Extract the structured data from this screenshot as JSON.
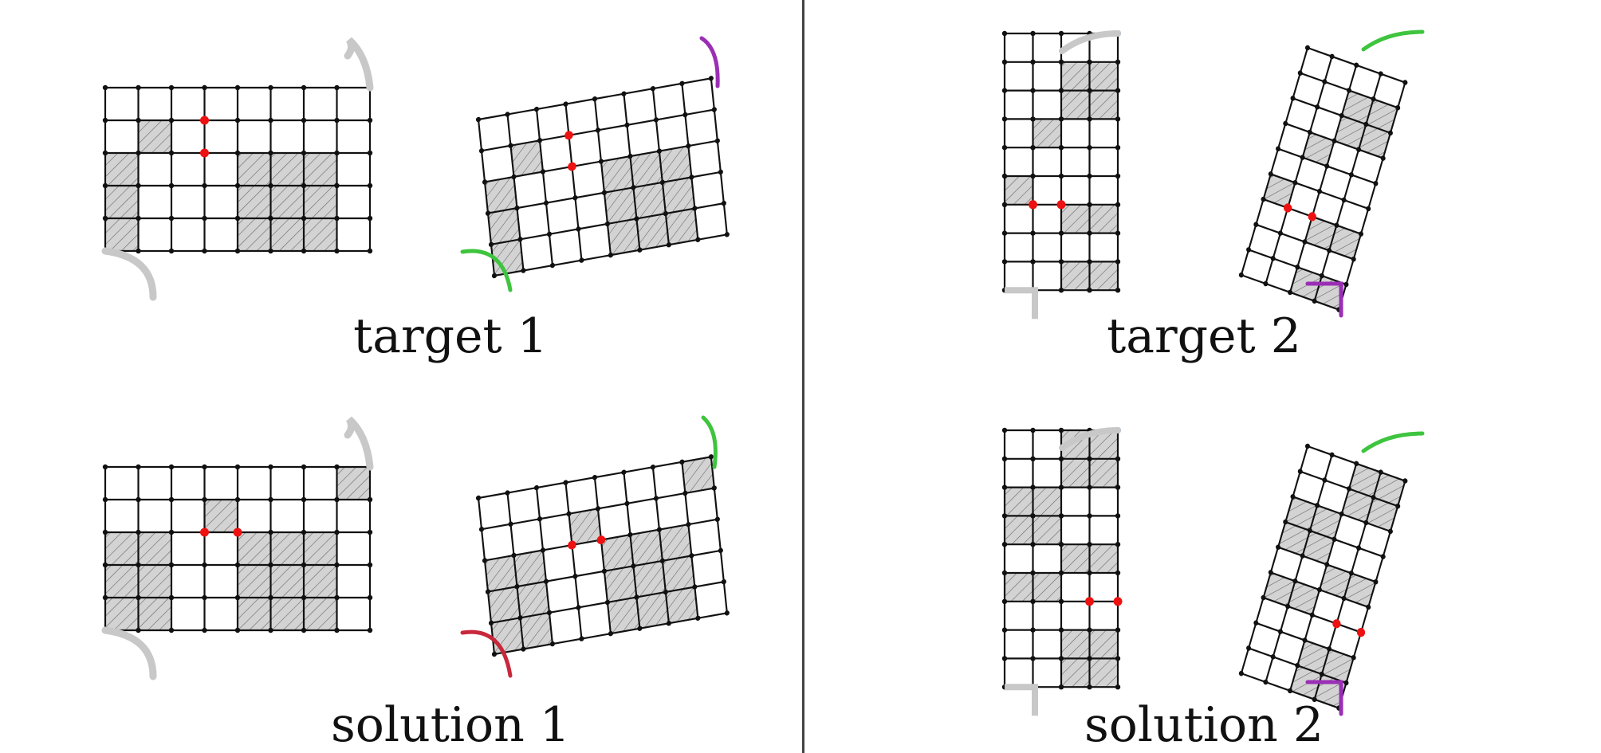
{
  "captions": {
    "target1": "target 1",
    "solution1": "solution 1",
    "target2": "target 2",
    "solution2": "solution 2"
  },
  "colors": {
    "line": "#111111",
    "shade": "#d3d3d3",
    "hatch": "#555555",
    "marker": "#ee1111",
    "corner_dot": "#3a8ee6",
    "arc_gray": "#c8c8c8",
    "arc_purple": "#9a2fb5",
    "arc_green": "#3ec43e",
    "arc_red": "#c8283c"
  },
  "panels": {
    "target1": {
      "cols": 8,
      "rows": 5,
      "shaded": [
        [
          1,
          1
        ],
        [
          0,
          2
        ],
        [
          4,
          2
        ],
        [
          5,
          2
        ],
        [
          6,
          2
        ],
        [
          0,
          3
        ],
        [
          4,
          3
        ],
        [
          5,
          3
        ],
        [
          6,
          3
        ],
        [
          0,
          4
        ],
        [
          4,
          4
        ],
        [
          5,
          4
        ],
        [
          6,
          4
        ]
      ],
      "markers": [
        [
          3,
          1
        ],
        [
          3,
          2
        ]
      ],
      "folded_arc": "arc_purple",
      "bottom_arc": "arc_green"
    },
    "solution1": {
      "cols": 8,
      "rows": 5,
      "shaded": [
        [
          7,
          0
        ],
        [
          3,
          1
        ],
        [
          0,
          2
        ],
        [
          1,
          2
        ],
        [
          4,
          2
        ],
        [
          5,
          2
        ],
        [
          6,
          2
        ],
        [
          0,
          3
        ],
        [
          1,
          3
        ],
        [
          4,
          3
        ],
        [
          5,
          3
        ],
        [
          6,
          3
        ],
        [
          0,
          4
        ],
        [
          1,
          4
        ],
        [
          4,
          4
        ],
        [
          5,
          4
        ],
        [
          6,
          4
        ]
      ],
      "markers": [
        [
          3,
          2
        ],
        [
          4,
          2
        ]
      ],
      "folded_arc": "arc_green",
      "bottom_arc": "arc_red"
    },
    "target2": {
      "cols": 4,
      "rows": 9,
      "shaded": [
        [
          2,
          1
        ],
        [
          3,
          1
        ],
        [
          2,
          2
        ],
        [
          3,
          2
        ],
        [
          1,
          3
        ],
        [
          0,
          5
        ],
        [
          2,
          6
        ],
        [
          3,
          6
        ],
        [
          2,
          8
        ],
        [
          3,
          8
        ]
      ],
      "markers": [
        [
          1,
          6
        ],
        [
          2,
          6
        ]
      ],
      "folded_arc": "arc_green",
      "bottom_arc": "arc_purple"
    },
    "solution2": {
      "cols": 4,
      "rows": 9,
      "shaded": [
        [
          2,
          0
        ],
        [
          3,
          0
        ],
        [
          2,
          1
        ],
        [
          3,
          1
        ],
        [
          0,
          2
        ],
        [
          1,
          2
        ],
        [
          0,
          3
        ],
        [
          1,
          3
        ],
        [
          2,
          4
        ],
        [
          3,
          4
        ],
        [
          0,
          5
        ],
        [
          1,
          5
        ],
        [
          2,
          7
        ],
        [
          3,
          7
        ],
        [
          2,
          8
        ],
        [
          3,
          8
        ]
      ],
      "markers": [
        [
          3,
          6
        ],
        [
          4,
          6
        ]
      ],
      "folded_arc": "arc_green",
      "bottom_arc": "arc_purple"
    }
  }
}
